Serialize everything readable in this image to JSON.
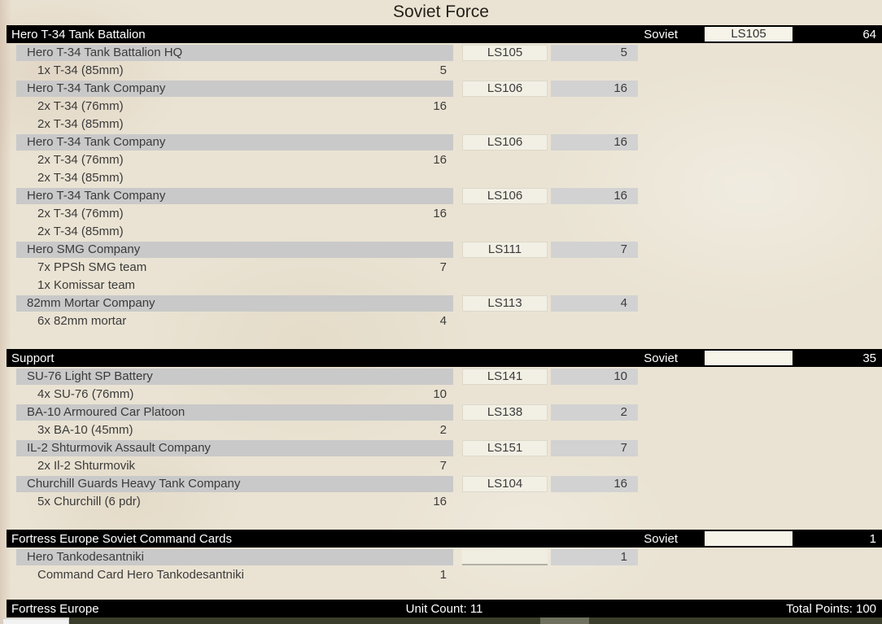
{
  "title": "Soviet Force",
  "sections": [
    {
      "name": "Hero T-34 Tank Battalion",
      "nationality": "Soviet",
      "code": "LS105",
      "points": "64",
      "rows": [
        {
          "type": "unit",
          "name": "Hero T-34 Tank Battalion HQ",
          "code": "LS105",
          "points": "5"
        },
        {
          "type": "item",
          "name": "1x T-34 (85mm)",
          "points": "5"
        },
        {
          "type": "unit",
          "name": "Hero T-34 Tank Company",
          "code": "LS106",
          "points": "16"
        },
        {
          "type": "item",
          "name": "2x T-34 (76mm)",
          "points": "16"
        },
        {
          "type": "item",
          "name": "2x T-34 (85mm)",
          "points": ""
        },
        {
          "type": "unit",
          "name": "Hero T-34 Tank Company",
          "code": "LS106",
          "points": "16"
        },
        {
          "type": "item",
          "name": "2x T-34 (76mm)",
          "points": "16"
        },
        {
          "type": "item",
          "name": "2x T-34 (85mm)",
          "points": ""
        },
        {
          "type": "unit",
          "name": "Hero T-34 Tank Company",
          "code": "LS106",
          "points": "16"
        },
        {
          "type": "item",
          "name": "2x T-34 (76mm)",
          "points": "16"
        },
        {
          "type": "item",
          "name": "2x T-34 (85mm)",
          "points": ""
        },
        {
          "type": "unit",
          "name": "Hero SMG Company",
          "code": "LS111",
          "points": "7"
        },
        {
          "type": "item",
          "name": "7x PPSh SMG team",
          "points": "7"
        },
        {
          "type": "item",
          "name": "1x Komissar team",
          "points": ""
        },
        {
          "type": "unit",
          "name": "82mm Mortar Company",
          "code": "LS113",
          "points": "4"
        },
        {
          "type": "item",
          "name": "6x 82mm mortar",
          "points": "4"
        }
      ]
    },
    {
      "name": "Support",
      "nationality": "Soviet",
      "code": "",
      "points": "35",
      "rows": [
        {
          "type": "unit",
          "name": "SU-76 Light SP Battery",
          "code": "LS141",
          "points": "10"
        },
        {
          "type": "item",
          "name": "4x SU-76 (76mm)",
          "points": "10"
        },
        {
          "type": "unit",
          "name": "BA-10 Armoured Car Platoon",
          "code": "LS138",
          "points": "2"
        },
        {
          "type": "item",
          "name": "3x BA-10 (45mm)",
          "points": "2"
        },
        {
          "type": "unit",
          "name": "IL-2 Shturmovik Assault Company",
          "code": "LS151",
          "points": "7"
        },
        {
          "type": "item",
          "name": "2x Il-2 Shturmovik",
          "points": "7"
        },
        {
          "type": "unit",
          "name": "Churchill Guards Heavy Tank Company",
          "code": "LS104",
          "points": "16"
        },
        {
          "type": "item",
          "name": "5x Churchill (6 pdr)",
          "points": "16"
        }
      ]
    },
    {
      "name": "Fortress Europe Soviet Command Cards",
      "nationality": "Soviet",
      "code": "",
      "points": "1",
      "rows": [
        {
          "type": "unit",
          "variant": "underline",
          "name": "Hero Tankodesantniki",
          "code": "",
          "points": "1"
        },
        {
          "type": "item",
          "name": "Command Card Hero Tankodesantniki",
          "points": "1"
        }
      ]
    }
  ],
  "footer": {
    "left": "Fortress Europe",
    "center": "Unit Count: 11",
    "right": "Total Points: 100"
  },
  "colors": {
    "section_header_bg": "#000000",
    "section_header_text": "#ffffff",
    "unit_row_bg": "#c9c9c9",
    "points_cell_bg": "#d2d2d2",
    "code_box_bg": "#f2efe4",
    "page_bg": "#eae3d3",
    "row_text": "#3b3b3b",
    "bottom_strip_dark": "#3b3e2b",
    "bottom_strip_light": "#6f715e",
    "bottom_input_bg": "#f2f2f2"
  }
}
